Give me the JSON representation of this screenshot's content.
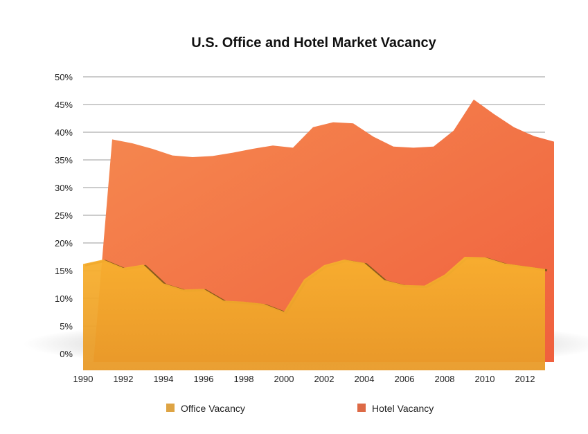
{
  "chart_data": {
    "type": "area",
    "title": "U.S. Office and Hotel Market Vacancy",
    "xlabel": "",
    "ylabel": "",
    "x": [
      1990,
      1991,
      1992,
      1993,
      1994,
      1995,
      1996,
      1997,
      1998,
      1999,
      2000,
      2001,
      2002,
      2003,
      2004,
      2005,
      2006,
      2007,
      2008,
      2009,
      2010,
      2011,
      2012,
      2013
    ],
    "x_tick_labels": [
      "1990",
      "1992",
      "1994",
      "1996",
      "1998",
      "2000",
      "2002",
      "2004",
      "2006",
      "2008",
      "2010",
      "2012"
    ],
    "y_tick_labels": [
      "0%",
      "5%",
      "10%",
      "15%",
      "20%",
      "25%",
      "30%",
      "35%",
      "40%",
      "45%",
      "50%"
    ],
    "ylim": [
      0,
      50
    ],
    "grid": true,
    "legend_position": "bottom",
    "series": [
      {
        "name": "Office Vacancy",
        "color": "#f5a623",
        "legend_color": "#dea444",
        "values": [
          16.2,
          17.0,
          15.5,
          16.1,
          12.7,
          11.6,
          11.7,
          9.6,
          9.4,
          9.0,
          7.6,
          13.4,
          16.0,
          17.0,
          16.4,
          13.3,
          12.4,
          12.3,
          14.3,
          17.5,
          17.4,
          16.3,
          15.8,
          15.3
        ]
      },
      {
        "name": "Hotel Vacancy",
        "color": "#f26b45",
        "legend_color": "#dd6a46",
        "values": [
          null,
          38.7,
          38.0,
          37.0,
          35.8,
          35.5,
          35.7,
          36.3,
          37.0,
          37.6,
          37.2,
          40.9,
          41.8,
          41.6,
          39.2,
          37.4,
          37.2,
          37.4,
          40.3,
          45.9,
          43.3,
          40.9,
          39.3,
          38.3
        ]
      }
    ]
  }
}
